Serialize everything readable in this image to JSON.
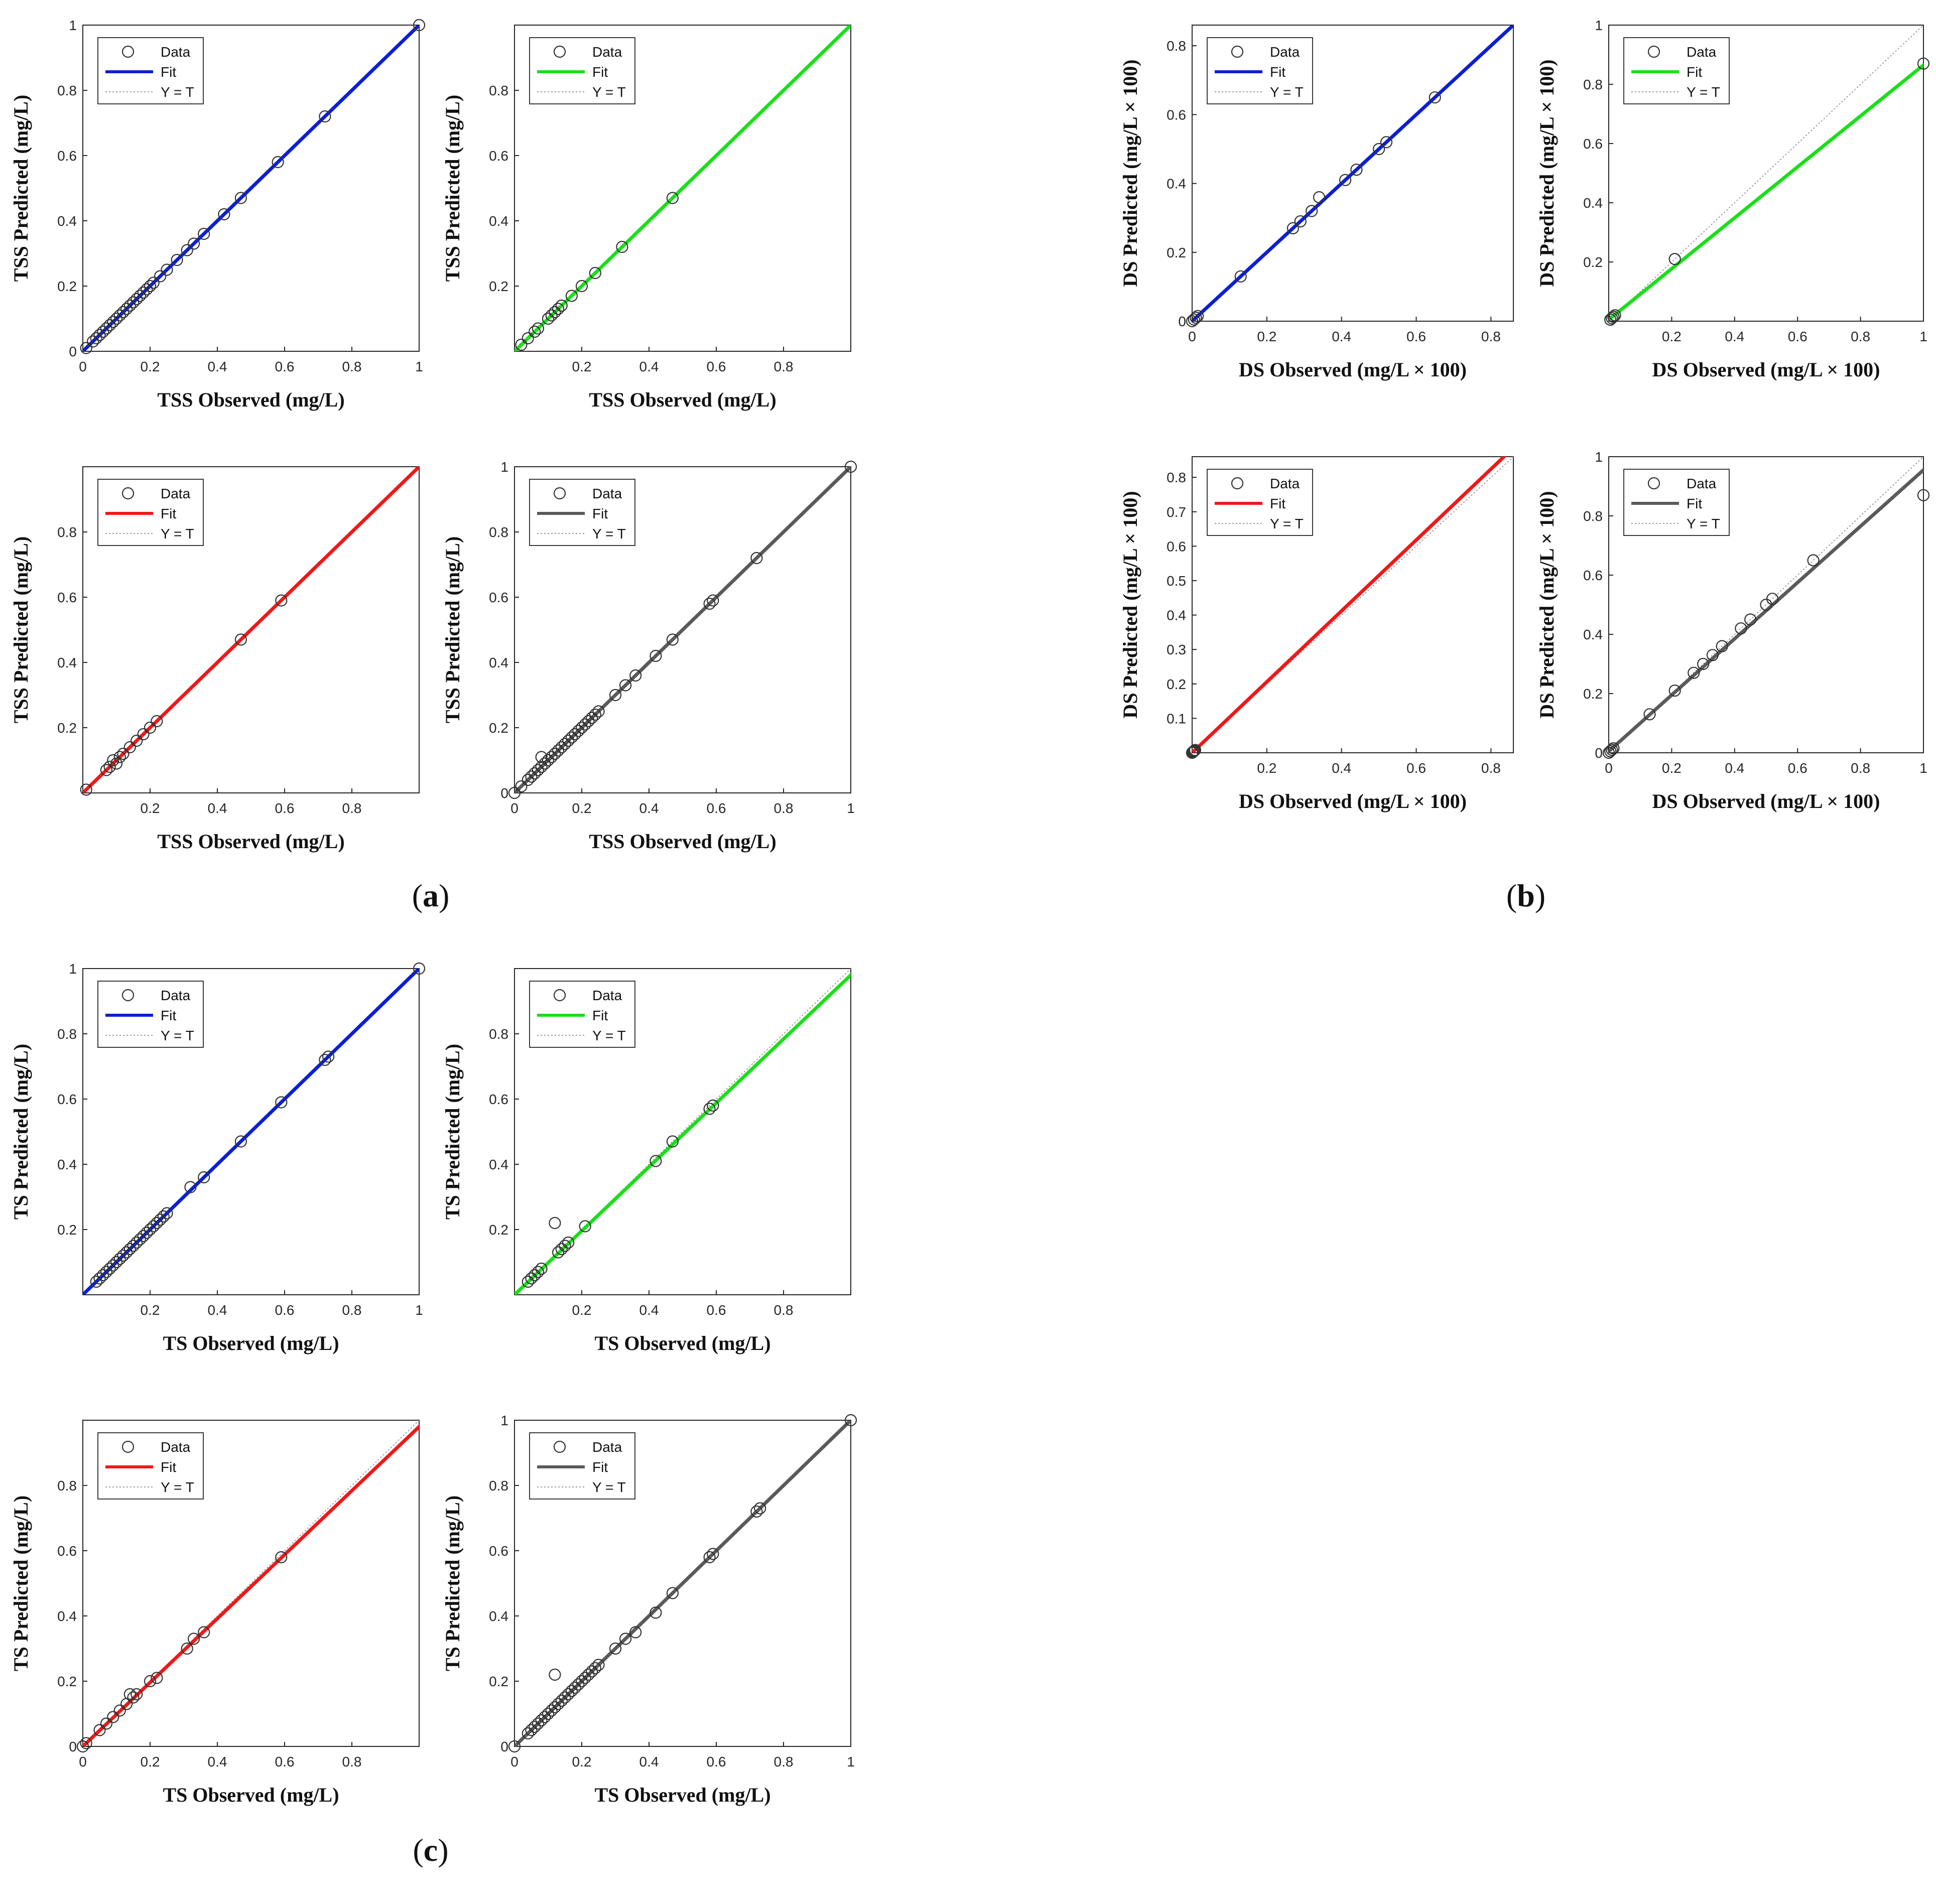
{
  "legend": {
    "data": "Data",
    "fit": "Fit",
    "yt": "Y = T"
  },
  "colors": {
    "blue": "#0b1fd6",
    "green": "#18e018",
    "red": "#f01818",
    "gray": "#5a5a5a",
    "marker": "#333333",
    "yt": "#9a9a9a"
  },
  "groups": [
    {
      "id": "a",
      "caption": "a"
    },
    {
      "id": "b",
      "caption": "b"
    },
    {
      "id": "c",
      "caption": "c"
    }
  ],
  "chart_data": [
    {
      "type": "scatter",
      "group": "a",
      "color": "blue",
      "xlabel": "TSS Observed (mg/L)",
      "ylabel": "TSS Predicted (mg/L)",
      "xlim": [
        0,
        1
      ],
      "ylim": [
        0,
        1
      ],
      "xticks": [
        "0",
        "0.2",
        "0.4",
        "0.6",
        "0.8",
        "1"
      ],
      "xtickvals": [
        0,
        0.2,
        0.4,
        0.6,
        0.8,
        1
      ],
      "yticks": [
        "0",
        "0.2",
        "0.4",
        "0.6",
        "0.8",
        "1"
      ],
      "ytickvals": [
        0,
        0.2,
        0.4,
        0.6,
        0.8,
        1
      ],
      "fit": {
        "slope": 1,
        "intercept": 0
      },
      "x": [
        0.01,
        0.03,
        0.04,
        0.05,
        0.06,
        0.07,
        0.08,
        0.09,
        0.1,
        0.11,
        0.12,
        0.13,
        0.14,
        0.15,
        0.16,
        0.17,
        0.18,
        0.19,
        0.2,
        0.21,
        0.23,
        0.25,
        0.28,
        0.31,
        0.33,
        0.36,
        0.42,
        0.47,
        0.58,
        0.72,
        1.0
      ],
      "y": [
        0.01,
        0.03,
        0.04,
        0.05,
        0.06,
        0.07,
        0.08,
        0.09,
        0.1,
        0.11,
        0.12,
        0.13,
        0.14,
        0.15,
        0.16,
        0.17,
        0.18,
        0.19,
        0.2,
        0.21,
        0.23,
        0.25,
        0.28,
        0.31,
        0.33,
        0.36,
        0.42,
        0.47,
        0.58,
        0.72,
        1.0
      ]
    },
    {
      "type": "scatter",
      "group": "a",
      "color": "green",
      "xlabel": "TSS Observed (mg/L)",
      "ylabel": "TSS Predicted (mg/L)",
      "xlim": [
        0,
        1
      ],
      "ylim": [
        0,
        1
      ],
      "xticks": [
        "0.2",
        "0.4",
        "0.6",
        "0.8"
      ],
      "xtickvals": [
        0.2,
        0.4,
        0.6,
        0.8
      ],
      "yticks": [
        "0.2",
        "0.4",
        "0.6",
        "0.8"
      ],
      "ytickvals": [
        0.2,
        0.4,
        0.6,
        0.8
      ],
      "fit": {
        "slope": 1,
        "intercept": 0
      },
      "x": [
        0.02,
        0.04,
        0.06,
        0.07,
        0.1,
        0.11,
        0.12,
        0.13,
        0.14,
        0.17,
        0.2,
        0.24,
        0.32,
        0.47
      ],
      "y": [
        0.02,
        0.04,
        0.06,
        0.07,
        0.1,
        0.11,
        0.12,
        0.13,
        0.14,
        0.17,
        0.2,
        0.24,
        0.32,
        0.47
      ]
    },
    {
      "type": "scatter",
      "group": "a",
      "color": "red",
      "xlabel": "TSS Observed (mg/L)",
      "ylabel": "TSS Predicted (mg/L)",
      "xlim": [
        0,
        1
      ],
      "ylim": [
        0,
        1
      ],
      "xticks": [
        "0.2",
        "0.4",
        "0.6",
        "0.8"
      ],
      "xtickvals": [
        0.2,
        0.4,
        0.6,
        0.8
      ],
      "yticks": [
        "0.2",
        "0.4",
        "0.6",
        "0.8"
      ],
      "ytickvals": [
        0.2,
        0.4,
        0.6,
        0.8
      ],
      "fit": {
        "slope": 1,
        "intercept": 0
      },
      "x": [
        0.01,
        0.07,
        0.08,
        0.09,
        0.1,
        0.11,
        0.12,
        0.14,
        0.16,
        0.18,
        0.2,
        0.22,
        0.47,
        0.59
      ],
      "y": [
        0.01,
        0.07,
        0.08,
        0.1,
        0.09,
        0.11,
        0.12,
        0.14,
        0.16,
        0.18,
        0.2,
        0.22,
        0.47,
        0.59
      ]
    },
    {
      "type": "scatter",
      "group": "a",
      "color": "gray",
      "xlabel": "TSS Observed (mg/L)",
      "ylabel": "TSS Predicted (mg/L)",
      "xlim": [
        0,
        1
      ],
      "ylim": [
        0,
        1
      ],
      "xticks": [
        "0",
        "0.2",
        "0.4",
        "0.6",
        "0.8",
        "1"
      ],
      "xtickvals": [
        0,
        0.2,
        0.4,
        0.6,
        0.8,
        1
      ],
      "yticks": [
        "0",
        "0.2",
        "0.4",
        "0.6",
        "0.8",
        "1"
      ],
      "ytickvals": [
        0,
        0.2,
        0.4,
        0.6,
        0.8,
        1
      ],
      "fit": {
        "slope": 1,
        "intercept": 0
      },
      "x": [
        0.0,
        0.02,
        0.04,
        0.05,
        0.06,
        0.07,
        0.08,
        0.09,
        0.1,
        0.11,
        0.12,
        0.13,
        0.14,
        0.15,
        0.16,
        0.17,
        0.18,
        0.19,
        0.2,
        0.21,
        0.22,
        0.23,
        0.24,
        0.25,
        0.3,
        0.33,
        0.36,
        0.42,
        0.47,
        0.58,
        0.59,
        0.72,
        1.0,
        0.08
      ],
      "y": [
        0.0,
        0.02,
        0.04,
        0.05,
        0.06,
        0.07,
        0.08,
        0.09,
        0.1,
        0.11,
        0.12,
        0.13,
        0.14,
        0.15,
        0.16,
        0.17,
        0.18,
        0.19,
        0.2,
        0.21,
        0.22,
        0.23,
        0.24,
        0.25,
        0.3,
        0.33,
        0.36,
        0.42,
        0.47,
        0.58,
        0.59,
        0.72,
        1.0,
        0.11
      ]
    },
    {
      "type": "scatter",
      "group": "b",
      "color": "blue",
      "xlabel": "DS Observed (mg/L × 100)",
      "ylabel": "DS Predicted (mg/L × 100)",
      "xlim": [
        0,
        0.86
      ],
      "ylim": [
        0,
        0.86
      ],
      "xticks": [
        "0",
        "0.2",
        "0.4",
        "0.6",
        "0.8"
      ],
      "xtickvals": [
        0,
        0.2,
        0.4,
        0.6,
        0.8
      ],
      "yticks": [
        "0",
        "0.2",
        "0.4",
        "0.6",
        "0.8"
      ],
      "ytickvals": [
        0,
        0.2,
        0.4,
        0.6,
        0.8
      ],
      "fit": {
        "slope": 1,
        "intercept": 0
      },
      "x": [
        0.0,
        0.005,
        0.01,
        0.015,
        0.13,
        0.27,
        0.29,
        0.32,
        0.34,
        0.41,
        0.44,
        0.5,
        0.52,
        0.65
      ],
      "y": [
        0.0,
        0.005,
        0.01,
        0.015,
        0.13,
        0.27,
        0.29,
        0.32,
        0.36,
        0.41,
        0.44,
        0.5,
        0.52,
        0.65
      ]
    },
    {
      "type": "scatter",
      "group": "b",
      "color": "green",
      "xlabel": "DS Observed (mg/L × 100)",
      "ylabel": "DS Predicted (mg/L × 100)",
      "xlim": [
        0,
        1
      ],
      "ylim": [
        0,
        1
      ],
      "xticks": [
        "0.2",
        "0.4",
        "0.6",
        "0.8",
        "1"
      ],
      "xtickvals": [
        0.2,
        0.4,
        0.6,
        0.8,
        1
      ],
      "yticks": [
        "0.2",
        "0.4",
        "0.6",
        "0.8",
        "1"
      ],
      "ytickvals": [
        0.2,
        0.4,
        0.6,
        0.8,
        1
      ],
      "fit": {
        "slope": 0.86,
        "intercept": 0.005
      },
      "x": [
        0.005,
        0.01,
        0.015,
        0.02,
        0.21,
        1.0
      ],
      "y": [
        0.005,
        0.01,
        0.015,
        0.02,
        0.21,
        0.87
      ]
    },
    {
      "type": "scatter",
      "group": "b",
      "color": "red",
      "xlabel": "DS Observed (mg/L × 100)",
      "ylabel": "DS Predicted (mg/L × 100)",
      "xlim": [
        0,
        0.86
      ],
      "ylim": [
        0,
        0.86
      ],
      "xticks": [
        "0.2",
        "0.4",
        "0.6",
        "0.8"
      ],
      "xtickvals": [
        0.2,
        0.4,
        0.6,
        0.8
      ],
      "yticks": [
        "0.1",
        "0.2",
        "0.3",
        "0.4",
        "0.5",
        "0.6",
        "0.7",
        "0.8"
      ],
      "ytickvals": [
        0.1,
        0.2,
        0.3,
        0.4,
        0.5,
        0.6,
        0.7,
        0.8
      ],
      "fit": {
        "slope": 1.03,
        "intercept": 0
      },
      "x": [
        0.0,
        0.002,
        0.004,
        0.006,
        0.008
      ],
      "y": [
        0.0,
        0.002,
        0.004,
        0.006,
        0.008
      ]
    },
    {
      "type": "scatter",
      "group": "b",
      "color": "gray",
      "xlabel": "DS Observed (mg/L × 100)",
      "ylabel": "DS Predicted (mg/L × 100)",
      "xlim": [
        0,
        1
      ],
      "ylim": [
        0,
        1
      ],
      "xticks": [
        "0",
        "0.2",
        "0.4",
        "0.6",
        "0.8",
        "1"
      ],
      "xtickvals": [
        0,
        0.2,
        0.4,
        0.6,
        0.8,
        1
      ],
      "yticks": [
        "0",
        "0.2",
        "0.4",
        "0.6",
        "0.8",
        "1"
      ],
      "ytickvals": [
        0,
        0.2,
        0.4,
        0.6,
        0.8,
        1
      ],
      "fit": {
        "slope": 0.95,
        "intercept": 0.005
      },
      "x": [
        0.0,
        0.005,
        0.01,
        0.015,
        0.13,
        0.21,
        0.27,
        0.3,
        0.33,
        0.36,
        0.42,
        0.45,
        0.5,
        0.52,
        0.65,
        1.0
      ],
      "y": [
        0.0,
        0.005,
        0.01,
        0.015,
        0.13,
        0.21,
        0.27,
        0.3,
        0.33,
        0.36,
        0.42,
        0.45,
        0.5,
        0.52,
        0.65,
        0.87
      ]
    },
    {
      "type": "scatter",
      "group": "c",
      "color": "blue",
      "xlabel": "TS Observed (mg/L)",
      "ylabel": "TS Predicted (mg/L)",
      "xlim": [
        0,
        1
      ],
      "ylim": [
        0,
        1
      ],
      "xticks": [
        "0.2",
        "0.4",
        "0.6",
        "0.8",
        "1"
      ],
      "xtickvals": [
        0.2,
        0.4,
        0.6,
        0.8,
        1
      ],
      "yticks": [
        "0.2",
        "0.4",
        "0.6",
        "0.8",
        "1"
      ],
      "ytickvals": [
        0.2,
        0.4,
        0.6,
        0.8,
        1
      ],
      "fit": {
        "slope": 1,
        "intercept": 0
      },
      "x": [
        0.04,
        0.05,
        0.06,
        0.07,
        0.08,
        0.09,
        0.1,
        0.11,
        0.12,
        0.13,
        0.14,
        0.15,
        0.16,
        0.17,
        0.18,
        0.19,
        0.2,
        0.21,
        0.22,
        0.23,
        0.24,
        0.25,
        0.32,
        0.36,
        0.47,
        0.59,
        0.72,
        0.73,
        1.0
      ],
      "y": [
        0.04,
        0.05,
        0.06,
        0.07,
        0.08,
        0.09,
        0.1,
        0.11,
        0.12,
        0.13,
        0.14,
        0.15,
        0.16,
        0.17,
        0.18,
        0.19,
        0.2,
        0.21,
        0.22,
        0.23,
        0.24,
        0.25,
        0.33,
        0.36,
        0.47,
        0.59,
        0.72,
        0.73,
        1.0
      ]
    },
    {
      "type": "scatter",
      "group": "c",
      "color": "green",
      "xlabel": "TS Observed (mg/L)",
      "ylabel": "TS Predicted (mg/L)",
      "xlim": [
        0,
        1
      ],
      "ylim": [
        0,
        1
      ],
      "xticks": [
        "0.2",
        "0.4",
        "0.6",
        "0.8"
      ],
      "xtickvals": [
        0.2,
        0.4,
        0.6,
        0.8
      ],
      "yticks": [
        "0.2",
        "0.4",
        "0.6",
        "0.8"
      ],
      "ytickvals": [
        0.2,
        0.4,
        0.6,
        0.8
      ],
      "fit": {
        "slope": 0.98,
        "intercept": 0
      },
      "x": [
        0.04,
        0.05,
        0.06,
        0.07,
        0.08,
        0.12,
        0.13,
        0.14,
        0.15,
        0.16,
        0.21,
        0.42,
        0.47,
        0.58,
        0.59
      ],
      "y": [
        0.04,
        0.05,
        0.06,
        0.07,
        0.08,
        0.22,
        0.13,
        0.14,
        0.15,
        0.16,
        0.21,
        0.41,
        0.47,
        0.57,
        0.58
      ]
    },
    {
      "type": "scatter",
      "group": "c",
      "color": "red",
      "xlabel": "TS Observed (mg/L)",
      "ylabel": "TS Predicted (mg/L)",
      "xlim": [
        0,
        1
      ],
      "ylim": [
        0,
        1
      ],
      "xticks": [
        "0",
        "0.2",
        "0.4",
        "0.6",
        "0.8"
      ],
      "xtickvals": [
        0,
        0.2,
        0.4,
        0.6,
        0.8
      ],
      "yticks": [
        "0",
        "0.2",
        "0.4",
        "0.6",
        "0.8"
      ],
      "ytickvals": [
        0,
        0.2,
        0.4,
        0.6,
        0.8
      ],
      "fit": {
        "slope": 0.98,
        "intercept": 0
      },
      "x": [
        0.0,
        0.01,
        0.05,
        0.07,
        0.09,
        0.11,
        0.13,
        0.14,
        0.15,
        0.16,
        0.2,
        0.22,
        0.31,
        0.33,
        0.36,
        0.59
      ],
      "y": [
        0.0,
        0.01,
        0.05,
        0.07,
        0.09,
        0.11,
        0.13,
        0.16,
        0.15,
        0.16,
        0.2,
        0.21,
        0.3,
        0.33,
        0.35,
        0.58
      ]
    },
    {
      "type": "scatter",
      "group": "c",
      "color": "gray",
      "xlabel": "TS Observed (mg/L)",
      "ylabel": "TS Predicted (mg/L)",
      "xlim": [
        0,
        1
      ],
      "ylim": [
        0,
        1
      ],
      "xticks": [
        "0",
        "0.2",
        "0.4",
        "0.6",
        "0.8",
        "1"
      ],
      "xtickvals": [
        0,
        0.2,
        0.4,
        0.6,
        0.8,
        1
      ],
      "yticks": [
        "0",
        "0.2",
        "0.4",
        "0.6",
        "0.8",
        "1"
      ],
      "ytickvals": [
        0,
        0.2,
        0.4,
        0.6,
        0.8,
        1
      ],
      "fit": {
        "slope": 1,
        "intercept": 0
      },
      "x": [
        0.0,
        0.04,
        0.05,
        0.06,
        0.07,
        0.08,
        0.09,
        0.1,
        0.11,
        0.12,
        0.13,
        0.14,
        0.15,
        0.16,
        0.17,
        0.18,
        0.19,
        0.2,
        0.21,
        0.22,
        0.23,
        0.24,
        0.25,
        0.3,
        0.33,
        0.36,
        0.42,
        0.47,
        0.58,
        0.59,
        0.72,
        0.73,
        1.0,
        0.12
      ],
      "y": [
        0.0,
        0.04,
        0.05,
        0.06,
        0.07,
        0.08,
        0.09,
        0.1,
        0.11,
        0.12,
        0.13,
        0.14,
        0.15,
        0.16,
        0.17,
        0.18,
        0.19,
        0.2,
        0.21,
        0.22,
        0.23,
        0.24,
        0.25,
        0.3,
        0.33,
        0.35,
        0.41,
        0.47,
        0.58,
        0.59,
        0.72,
        0.73,
        1.0,
        0.22
      ]
    }
  ]
}
